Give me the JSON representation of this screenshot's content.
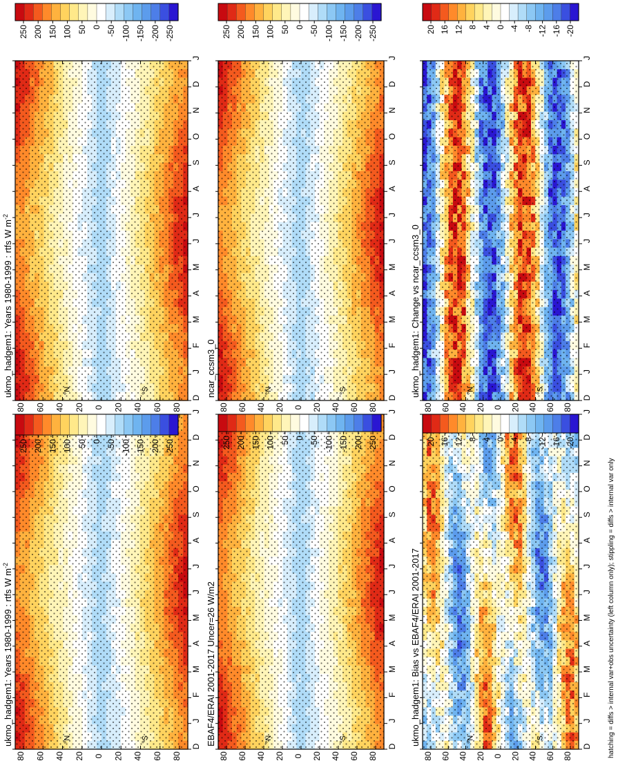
{
  "figure": {
    "orientation": "rotated 90 degrees counter-clockwise",
    "footnote": "hatching = diffs > internal var+obs uncertainty (left column only); stippling = diffs > internal var only"
  },
  "chart_data": [
    {
      "type": "heatmap",
      "id": "p1",
      "title": "ukmo_hadgem1: Years 1980-1999 : rtfs W m",
      "title_superscript": "-2",
      "x_ticks": [
        "D",
        "J",
        "F",
        "M",
        "A",
        "M",
        "J",
        "J",
        "A",
        "S",
        "O",
        "N",
        "D",
        "J"
      ],
      "y_ticks": [
        "80",
        "60",
        "40",
        "20",
        "0",
        "20",
        "40",
        "60",
        "80"
      ],
      "y_tick_suffix": [
        "",
        "",
        "°N",
        "",
        "",
        "",
        "°S",
        "",
        ""
      ],
      "colorbar": {
        "labels": [
          "250",
          "200",
          "150",
          "100",
          "50",
          "0",
          "-50",
          "-100",
          "-150",
          "-200",
          "-250"
        ]
      },
      "stipple": true,
      "field": "radiation"
    },
    {
      "type": "heatmap",
      "id": "p2",
      "title": "ukmo_hadgem1: Years 1980-1999 : rtfs W m",
      "title_superscript": "-2",
      "x_ticks": [
        "D",
        "J",
        "F",
        "M",
        "A",
        "M",
        "J",
        "J",
        "A",
        "S",
        "O",
        "N",
        "D",
        "J"
      ],
      "y_ticks": [
        "80",
        "60",
        "40",
        "20",
        "0",
        "20",
        "40",
        "60",
        "80"
      ],
      "y_tick_suffix": [
        "",
        "",
        "°N",
        "",
        "",
        "",
        "°S",
        "",
        ""
      ],
      "colorbar": {
        "labels": [
          "250",
          "200",
          "150",
          "100",
          "50",
          "0",
          "-50",
          "-100",
          "-150",
          "-200",
          "-250"
        ]
      },
      "stipple": true,
      "field": "radiation"
    },
    {
      "type": "heatmap",
      "id": "p3",
      "title": "EBAF4/ERAI 2001-2017 Uncer=26 W/m2",
      "title_superscript": "",
      "x_ticks": [
        "D",
        "J",
        "F",
        "M",
        "A",
        "M",
        "J",
        "J",
        "A",
        "S",
        "O",
        "N",
        "D",
        "J"
      ],
      "y_ticks": [
        "80",
        "60",
        "40",
        "20",
        "0",
        "20",
        "40",
        "60",
        "80"
      ],
      "y_tick_suffix": [
        "",
        "",
        "°N",
        "",
        "",
        "",
        "°S",
        "",
        ""
      ],
      "colorbar": {
        "labels": [
          "250",
          "200",
          "150",
          "100",
          "50",
          "0",
          "-50",
          "-100",
          "-150",
          "-200",
          "-250"
        ]
      },
      "stipple": true,
      "field": "radiation"
    },
    {
      "type": "heatmap",
      "id": "p4",
      "title": "ncar_ccsm3_0",
      "title_superscript": "",
      "x_ticks": [
        "D",
        "J",
        "F",
        "M",
        "A",
        "M",
        "J",
        "J",
        "A",
        "S",
        "O",
        "N",
        "D",
        "J"
      ],
      "y_ticks": [
        "80",
        "60",
        "40",
        "20",
        "0",
        "20",
        "40",
        "60",
        "80"
      ],
      "y_tick_suffix": [
        "",
        "",
        "°N",
        "",
        "",
        "",
        "°S",
        "",
        ""
      ],
      "colorbar": {
        "labels": [
          "250",
          "200",
          "150",
          "100",
          "50",
          "0",
          "-50",
          "-100",
          "-150",
          "-200",
          "-250"
        ]
      },
      "stipple": true,
      "field": "radiation"
    },
    {
      "type": "heatmap",
      "id": "p5",
      "title": "ukmo_hadgem1: Bias vs EBAF4/ERAI 2001-2017",
      "title_superscript": "",
      "x_ticks": [
        "D",
        "J",
        "F",
        "M",
        "A",
        "M",
        "J",
        "J",
        "A",
        "S",
        "O",
        "N",
        "D",
        "J"
      ],
      "y_ticks": [
        "80",
        "60",
        "40",
        "20",
        "0",
        "20",
        "40",
        "60",
        "80"
      ],
      "y_tick_suffix": [
        "",
        "",
        "°N",
        "",
        "",
        "",
        "°S",
        "",
        ""
      ],
      "colorbar": {
        "labels": [
          "20",
          "16",
          "12",
          "8",
          "4",
          "0",
          "-4",
          "-8",
          "-12",
          "-16",
          "-20"
        ]
      },
      "stipple": true,
      "field": "bias"
    },
    {
      "type": "heatmap",
      "id": "p6",
      "title": "ukmo_hadgem1: Change vs ncar_ccsm3_0",
      "title_superscript": "",
      "x_ticks": [
        "D",
        "J",
        "F",
        "M",
        "A",
        "M",
        "J",
        "J",
        "A",
        "S",
        "O",
        "N",
        "D",
        "J"
      ],
      "y_ticks": [
        "80",
        "60",
        "40",
        "20",
        "0",
        "20",
        "40",
        "60",
        "80"
      ],
      "y_tick_suffix": [
        "",
        "",
        "°N",
        "",
        "",
        "",
        "°S",
        "",
        ""
      ],
      "colorbar": {
        "labels": [
          "20",
          "16",
          "12",
          "8",
          "4",
          "0",
          "-4",
          "-8",
          "-12",
          "-16",
          "-20"
        ]
      },
      "stipple": true,
      "field": "change"
    }
  ],
  "palette": [
    "#2a16d2",
    "#3a4fe0",
    "#4d7ee8",
    "#5c9cec",
    "#6fb4f0",
    "#8cc8f4",
    "#b0dcf8",
    "#d8eefc",
    "#ffffff",
    "#fffbe0",
    "#fff5b8",
    "#ffe98a",
    "#ffd35e",
    "#ffb23e",
    "#ff8a2a",
    "#f45a1e",
    "#e02a16",
    "#c80a10"
  ]
}
